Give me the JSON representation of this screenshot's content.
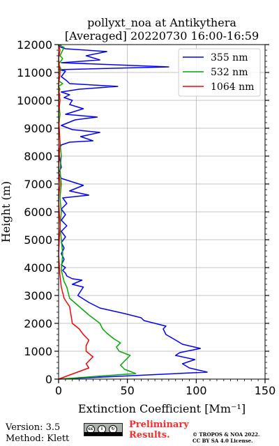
{
  "chart_data": {
    "type": "line",
    "title": "pollyxt_noa at Antikythera",
    "subtitle": "[Averaged] 20220730 16:00-16:59",
    "xlabel": "Extinction Coefficient [Mm⁻¹]",
    "ylabel": "Height (m)",
    "xlim": [
      0,
      150
    ],
    "ylim": [
      0,
      12000
    ],
    "xticks": [
      "0",
      "50",
      "100",
      "150"
    ],
    "yticks": [
      "0",
      "1000",
      "2000",
      "3000",
      "4000",
      "5000",
      "6000",
      "7000",
      "8000",
      "9000",
      "10000",
      "11000",
      "12000"
    ],
    "grid": true,
    "legend_position": "top-right",
    "series": [
      {
        "name": "355 nm",
        "color": "#0000ff",
        "x": [
          0,
          108,
          95,
          90,
          99,
          85,
          88,
          103,
          90,
          85,
          78,
          76,
          78,
          70,
          62,
          60,
          48,
          30,
          22,
          14,
          18,
          10,
          17,
          10,
          6,
          5,
          3,
          5,
          2,
          4,
          2,
          4,
          2,
          5,
          2,
          6,
          2,
          5,
          2,
          6,
          3,
          22,
          8,
          18,
          2,
          0,
          2,
          0,
          2,
          8,
          25,
          16,
          30,
          10,
          2,
          12,
          28,
          5,
          18,
          8,
          10,
          4,
          8,
          2,
          15,
          43,
          8,
          6,
          2,
          5,
          0,
          80,
          2,
          30,
          20,
          35,
          5,
          2,
          0,
          2
        ],
        "y": [
          0,
          250,
          400,
          550,
          700,
          850,
          950,
          1100,
          1250,
          1400,
          1600,
          1800,
          1900,
          2000,
          2100,
          2200,
          2350,
          2550,
          2750,
          3000,
          3300,
          3400,
          3550,
          3600,
          3700,
          3800,
          3900,
          4000,
          4100,
          4300,
          4500,
          4700,
          4900,
          5100,
          5300,
          5500,
          5700,
          5900,
          6100,
          6300,
          6500,
          6600,
          6750,
          6950,
          7200,
          7400,
          7600,
          8200,
          8400,
          8500,
          8550,
          8700,
          8850,
          8950,
          9100,
          9300,
          9400,
          9500,
          9700,
          9850,
          10000,
          10100,
          10200,
          10300,
          10400,
          10500,
          10600,
          10700,
          10850,
          11050,
          11100,
          11200,
          11350,
          11450,
          11600,
          11750,
          11850,
          11900,
          11950,
          12000
        ]
      },
      {
        "name": "532 nm",
        "color": "#00aa00",
        "x": [
          0,
          56,
          48,
          45,
          52,
          44,
          42,
          45,
          40,
          35,
          32,
          30,
          22,
          15,
          8,
          6,
          4,
          3,
          2,
          3,
          2,
          1,
          2,
          1,
          2,
          1,
          2,
          1,
          0,
          1,
          0,
          1,
          0,
          1,
          0,
          3,
          0,
          1,
          0,
          2,
          0,
          3,
          1,
          4,
          0
        ],
        "y": [
          0,
          200,
          350,
          500,
          850,
          1000,
          1150,
          1300,
          1450,
          1650,
          1800,
          2000,
          2300,
          2600,
          2900,
          3300,
          3500,
          3700,
          3900,
          4500,
          5000,
          5500,
          6000,
          6500,
          7000,
          7500,
          8000,
          8500,
          9000,
          9500,
          10000,
          10200,
          10300,
          10400,
          10500,
          10600,
          10700,
          10900,
          11000,
          11100,
          11300,
          11500,
          11600,
          11900,
          12000
        ]
      },
      {
        "name": "1064 nm",
        "color": "#ff0000",
        "x": [
          0,
          22,
          20,
          25,
          20,
          20,
          22,
          18,
          15,
          10,
          9,
          8,
          4,
          2,
          1,
          0,
          1,
          0,
          1,
          0,
          1,
          0,
          1,
          0,
          1,
          0,
          1,
          0
        ],
        "y": [
          0,
          400,
          550,
          800,
          1000,
          1200,
          1400,
          1600,
          1800,
          2000,
          2300,
          2600,
          2900,
          3300,
          3700,
          4500,
          5500,
          6500,
          7000,
          7500,
          8500,
          9500,
          10000,
          10500,
          11000,
          11500,
          11800,
          12000
        ]
      }
    ]
  },
  "footer": {
    "version": "Version: 3.5",
    "method": "Method: Klett",
    "preliminary_line1": "Preliminary",
    "preliminary_line2": "Results.",
    "copyright_line1": "© TROPOS & NOA 2022.",
    "copyright_line2": "CC BY SA 4.0 License."
  }
}
